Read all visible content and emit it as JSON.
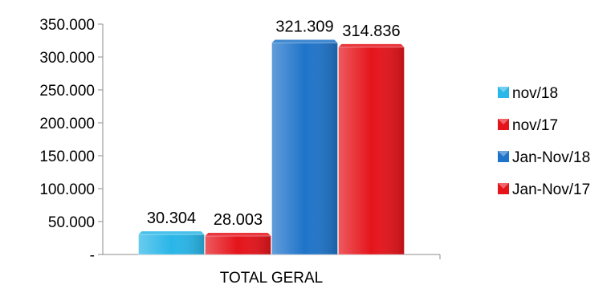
{
  "chart_data": {
    "type": "bar",
    "categories": [
      "TOTAL GERAL"
    ],
    "series": [
      {
        "name": "nov/18",
        "values": [
          30304
        ],
        "label": "30.304",
        "color": "#29b6e8"
      },
      {
        "name": "nov/17",
        "values": [
          28003
        ],
        "label": "28.003",
        "color": "#e5141b"
      },
      {
        "name": "Jan-Nov/18",
        "values": [
          321309
        ],
        "label": "321.309",
        "color": "#1f74c9"
      },
      {
        "name": "Jan-Nov/17",
        "values": [
          314836
        ],
        "label": "314.836",
        "color": "#e5141b"
      }
    ],
    "y_ticks": [
      {
        "value": 0,
        "label": "-"
      },
      {
        "value": 50000,
        "label": "50.000"
      },
      {
        "value": 100000,
        "label": "100.000"
      },
      {
        "value": 150000,
        "label": "150.000"
      },
      {
        "value": 200000,
        "label": "200.000"
      },
      {
        "value": 250000,
        "label": "250.000"
      },
      {
        "value": 300000,
        "label": "300.000"
      },
      {
        "value": 350000,
        "label": "350.000"
      }
    ],
    "ylim": [
      0,
      350000
    ],
    "grid": false,
    "legend_position": "right"
  }
}
